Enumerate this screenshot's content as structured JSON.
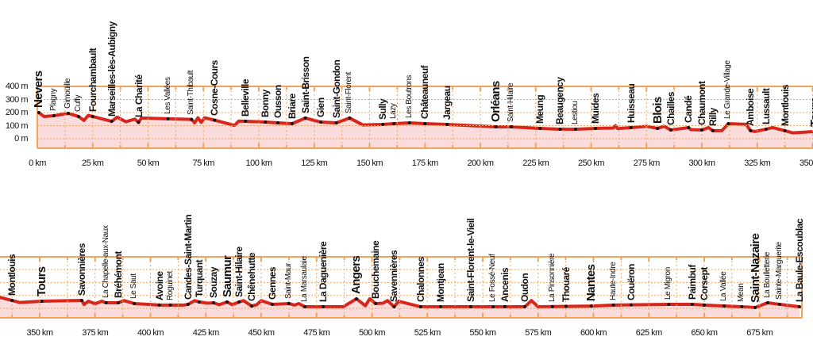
{
  "chart_data": {
    "type": "area",
    "title": "",
    "xlabel": "",
    "ylabel": "",
    "ylim": [
      -75,
      400
    ],
    "y_ticks": [
      "400 m",
      "300 m",
      "200 m",
      "100 m",
      "0 m"
    ],
    "y_tick_values": [
      400,
      300,
      200,
      100,
      0
    ],
    "grid": true,
    "colors": {
      "line": "#d8261c",
      "fill": "#fadcdc",
      "frame": "#f2a35c",
      "dot": "#111111"
    },
    "profile": [
      [
        0,
        195
      ],
      [
        0.7,
        200
      ],
      [
        3,
        170
      ],
      [
        7.5,
        176
      ],
      [
        14,
        194
      ],
      [
        18.6,
        170
      ],
      [
        21,
        140
      ],
      [
        23,
        178
      ],
      [
        25,
        170
      ],
      [
        33.6,
        133
      ],
      [
        36,
        165
      ],
      [
        40,
        130
      ],
      [
        44,
        150
      ],
      [
        45.7,
        125
      ],
      [
        47,
        158
      ],
      [
        59,
        152
      ],
      [
        69.6,
        148
      ],
      [
        71,
        122
      ],
      [
        72.5,
        160
      ],
      [
        74,
        125
      ],
      [
        75.5,
        160
      ],
      [
        80,
        142
      ],
      [
        89,
        102
      ],
      [
        91,
        135
      ],
      [
        94,
        133
      ],
      [
        103,
        127
      ],
      [
        108.6,
        121
      ],
      [
        115,
        115
      ],
      [
        121,
        158
      ],
      [
        128,
        127
      ],
      [
        135,
        121
      ],
      [
        141,
        158
      ],
      [
        147,
        105
      ],
      [
        156,
        109
      ],
      [
        161,
        115
      ],
      [
        168,
        121
      ],
      [
        175,
        115
      ],
      [
        185,
        109
      ],
      [
        207,
        91
      ],
      [
        214,
        91
      ],
      [
        227,
        79
      ],
      [
        236,
        73
      ],
      [
        243,
        73
      ],
      [
        252,
        79
      ],
      [
        260,
        82
      ],
      [
        261,
        100
      ],
      [
        262,
        78
      ],
      [
        268,
        85
      ],
      [
        275,
        95
      ],
      [
        280,
        79
      ],
      [
        283,
        95
      ],
      [
        286,
        67
      ],
      [
        294,
        85
      ],
      [
        295,
        70
      ],
      [
        300,
        67
      ],
      [
        303,
        85
      ],
      [
        305,
        61
      ],
      [
        309,
        61
      ],
      [
        312,
        115
      ],
      [
        320,
        110
      ],
      [
        322,
        61
      ],
      [
        324,
        55
      ],
      [
        329,
        73
      ],
      [
        332,
        85
      ],
      [
        337.5,
        61
      ],
      [
        341,
        45
      ],
      [
        351,
        55
      ],
      [
        369,
        61
      ],
      [
        370,
        30
      ],
      [
        372,
        55
      ],
      [
        375,
        35
      ],
      [
        378,
        55
      ],
      [
        380,
        43
      ],
      [
        385.5,
        43
      ],
      [
        388,
        60
      ],
      [
        392.7,
        37
      ],
      [
        404,
        25
      ],
      [
        409,
        25
      ],
      [
        415,
        25
      ],
      [
        417,
        31
      ],
      [
        420,
        60
      ],
      [
        422,
        49
      ],
      [
        426,
        40
      ],
      [
        428.5,
        43
      ],
      [
        431,
        28
      ],
      [
        434.6,
        49
      ],
      [
        437,
        28
      ],
      [
        440,
        49
      ],
      [
        442,
        60
      ],
      [
        445.7,
        18
      ],
      [
        448,
        28
      ],
      [
        450,
        60
      ],
      [
        455,
        31
      ],
      [
        462.5,
        37
      ],
      [
        465,
        25
      ],
      [
        467,
        37
      ],
      [
        469.7,
        12
      ],
      [
        478,
        12
      ],
      [
        487,
        12
      ],
      [
        493,
        74
      ],
      [
        497,
        20
      ],
      [
        499,
        74
      ],
      [
        501.6,
        37
      ],
      [
        505,
        40
      ],
      [
        507,
        60
      ],
      [
        510,
        12
      ],
      [
        512,
        55
      ],
      [
        522,
        12
      ],
      [
        569,
        12
      ],
      [
        572,
        60
      ],
      [
        575,
        12
      ],
      [
        599,
        18
      ],
      [
        609,
        25
      ],
      [
        634,
        31
      ],
      [
        645,
        31
      ],
      [
        650,
        25
      ],
      [
        667,
        12
      ],
      [
        673,
        6
      ],
      [
        678.6,
        43
      ],
      [
        684,
        31
      ],
      [
        693,
        12
      ]
    ],
    "panels": [
      {
        "xlim": [
          0,
          350
        ],
        "x_ticks": [
          "0 km",
          "25 km",
          "50 km",
          "75 km",
          "100 km",
          "125 km",
          "150 km",
          "175 km",
          "200 km",
          "225 km",
          "250 km",
          "275 km",
          "300 km",
          "325 km",
          "350 km"
        ],
        "x_tick_values": [
          0,
          25,
          50,
          75,
          100,
          125,
          150,
          175,
          200,
          225,
          250,
          275,
          300,
          325,
          350
        ],
        "places": [
          {
            "name": "Nevers",
            "km": 0.7,
            "elev": 200,
            "rank": "major"
          },
          {
            "name": "Plagny",
            "km": 7.5,
            "elev": 176,
            "rank": "minor"
          },
          {
            "name": "Gimouille",
            "km": 14,
            "elev": 194,
            "rank": "minor"
          },
          {
            "name": "Cuffy",
            "km": 18.6,
            "elev": 170,
            "rank": "minor"
          },
          {
            "name": "Fourchambault",
            "km": 25,
            "elev": 170,
            "rank": "mid"
          },
          {
            "name": "Marseilles-lès-Aubigny",
            "km": 33.6,
            "elev": 133,
            "rank": "mid"
          },
          {
            "name": "La Charité",
            "km": 45.7,
            "elev": 125,
            "rank": "mid"
          },
          {
            "name": "Les Vallées",
            "km": 59,
            "elev": 152,
            "rank": "minor"
          },
          {
            "name": "Saint-Thibault",
            "km": 69.6,
            "elev": 148,
            "rank": "minor"
          },
          {
            "name": "Cosne-Cours",
            "km": 80,
            "elev": 142,
            "rank": "mid"
          },
          {
            "name": "Belleville",
            "km": 94,
            "elev": 133,
            "rank": "mid"
          },
          {
            "name": "Bonny",
            "km": 103,
            "elev": 127,
            "rank": "mid"
          },
          {
            "name": "Ousson",
            "km": 108.6,
            "elev": 121,
            "rank": "mid"
          },
          {
            "name": "Briare",
            "km": 115,
            "elev": 115,
            "rank": "mid"
          },
          {
            "name": "Saint-Brisson",
            "km": 121,
            "elev": 158,
            "rank": "mid"
          },
          {
            "name": "Gien",
            "km": 128,
            "elev": 127,
            "rank": "mid"
          },
          {
            "name": "Saint-Gondon",
            "km": 135,
            "elev": 121,
            "rank": "mid"
          },
          {
            "name": "Saint-Florent",
            "km": 141,
            "elev": 158,
            "rank": "minor"
          },
          {
            "name": "Sully",
            "km": 156,
            "elev": 109,
            "rank": "mid"
          },
          {
            "name": "Lazy",
            "km": 161,
            "elev": 115,
            "rank": "minor"
          },
          {
            "name": "Les Boutrons",
            "km": 168,
            "elev": 121,
            "rank": "minor"
          },
          {
            "name": "Châteauneuf",
            "km": 175,
            "elev": 115,
            "rank": "mid"
          },
          {
            "name": "Jargeau",
            "km": 185,
            "elev": 109,
            "rank": "mid"
          },
          {
            "name": "Orléans",
            "km": 207,
            "elev": 91,
            "rank": "major"
          },
          {
            "name": "Saint-Hilaire",
            "km": 214,
            "elev": 91,
            "rank": "minor"
          },
          {
            "name": "Meung",
            "km": 227,
            "elev": 79,
            "rank": "mid"
          },
          {
            "name": "Beaugency",
            "km": 236,
            "elev": 73,
            "rank": "mid"
          },
          {
            "name": "Lestiou",
            "km": 243,
            "elev": 73,
            "rank": "minor"
          },
          {
            "name": "Muides",
            "km": 252,
            "elev": 79,
            "rank": "mid"
          },
          {
            "name": "Huisseau",
            "km": 268,
            "elev": 85,
            "rank": "mid"
          },
          {
            "name": "Blois",
            "km": 280,
            "elev": 79,
            "rank": "major"
          },
          {
            "name": "Chailles",
            "km": 286,
            "elev": 67,
            "rank": "mid"
          },
          {
            "name": "Candé",
            "km": 294,
            "elev": 85,
            "rank": "mid"
          },
          {
            "name": "Chaumont",
            "km": 300,
            "elev": 67,
            "rank": "mid"
          },
          {
            "name": "Rilly",
            "km": 305,
            "elev": 61,
            "rank": "mid"
          },
          {
            "name": "Le Grande-Village",
            "km": 312,
            "elev": 115,
            "rank": "minor"
          },
          {
            "name": "Amboise",
            "km": 322,
            "elev": 61,
            "rank": "mid"
          },
          {
            "name": "Lussault",
            "km": 329,
            "elev": 73,
            "rank": "mid"
          },
          {
            "name": "Montlouis",
            "km": 337.5,
            "elev": 61,
            "rank": "mid"
          },
          {
            "name": "Tours",
            "km": 351,
            "elev": 55,
            "rank": "major"
          }
        ]
      },
      {
        "xlim": [
          332,
          696
        ],
        "x_ticks": [
          "350 km",
          "375 km",
          "400 km",
          "425 km",
          "450 km",
          "475 km",
          "500 km",
          "525 km",
          "550 km",
          "575 km",
          "600 km",
          "625 km",
          "650 km",
          "675 km"
        ],
        "x_tick_values": [
          350,
          375,
          400,
          425,
          450,
          475,
          500,
          525,
          550,
          575,
          600,
          625,
          650,
          675
        ],
        "places": [
          {
            "name": "Montlouis",
            "km": 337.5,
            "elev": 61,
            "rank": "mid"
          },
          {
            "name": "Tours",
            "km": 351,
            "elev": 55,
            "rank": "major"
          },
          {
            "name": "Savonnières",
            "km": 369,
            "elev": 61,
            "rank": "mid"
          },
          {
            "name": "La Chapelle-aux-Naux",
            "km": 380,
            "elev": 43,
            "rank": "minor"
          },
          {
            "name": "Bréhémont",
            "km": 385.5,
            "elev": 43,
            "rank": "mid"
          },
          {
            "name": "Le Saut",
            "km": 392.7,
            "elev": 37,
            "rank": "minor"
          },
          {
            "name": "Avoine",
            "km": 404,
            "elev": 25,
            "rank": "mid"
          },
          {
            "name": "Roguinet",
            "km": 409,
            "elev": 25,
            "rank": "minor"
          },
          {
            "name": "Candes-Saint-Martin",
            "km": 417,
            "elev": 31,
            "rank": "mid"
          },
          {
            "name": "Turquant",
            "km": 422,
            "elev": 49,
            "rank": "mid"
          },
          {
            "name": "Souzay",
            "km": 428.5,
            "elev": 43,
            "rank": "mid"
          },
          {
            "name": "Saumur",
            "km": 434.6,
            "elev": 49,
            "rank": "major"
          },
          {
            "name": "Saint-Hilaire",
            "km": 440,
            "elev": 49,
            "rank": "mid"
          },
          {
            "name": "Chênehutte",
            "km": 445.7,
            "elev": 18,
            "rank": "mid"
          },
          {
            "name": "Gennes",
            "km": 455,
            "elev": 31,
            "rank": "mid"
          },
          {
            "name": "Saint-Maur",
            "km": 462.5,
            "elev": 37,
            "rank": "minor"
          },
          {
            "name": "La Marsaulaie",
            "km": 469.7,
            "elev": 12,
            "rank": "minor"
          },
          {
            "name": "La Daguenière",
            "km": 478,
            "elev": 12,
            "rank": "mid"
          },
          {
            "name": "Angers",
            "km": 493,
            "elev": 74,
            "rank": "major"
          },
          {
            "name": "Bouchemaine",
            "km": 501.6,
            "elev": 37,
            "rank": "mid"
          },
          {
            "name": "Savennières",
            "km": 510,
            "elev": 12,
            "rank": "mid"
          },
          {
            "name": "Chalonnes",
            "km": 522,
            "elev": 12,
            "rank": "mid"
          },
          {
            "name": "Montjean",
            "km": 531,
            "elev": 12,
            "rank": "mid"
          },
          {
            "name": "Saint-Florent-le-Vieil",
            "km": 544.6,
            "elev": 12,
            "rank": "mid"
          },
          {
            "name": "Le Fossé-Neuf",
            "km": 554.7,
            "elev": 12,
            "rank": "minor"
          },
          {
            "name": "Ancenis",
            "km": 560,
            "elev": 12,
            "rank": "mid"
          },
          {
            "name": "Oudon",
            "km": 569,
            "elev": 12,
            "rank": "mid"
          },
          {
            "name": "La Pinsonnière",
            "km": 581.5,
            "elev": 13,
            "rank": "minor"
          },
          {
            "name": "Thouaré",
            "km": 587.6,
            "elev": 15,
            "rank": "mid"
          },
          {
            "name": "Nantes",
            "km": 599,
            "elev": 18,
            "rank": "major"
          },
          {
            "name": "Haute-Indre",
            "km": 609,
            "elev": 25,
            "rank": "minor"
          },
          {
            "name": "Couëron",
            "km": 617,
            "elev": 27,
            "rank": "mid"
          },
          {
            "name": "Le Migron",
            "km": 634,
            "elev": 31,
            "rank": "minor"
          },
          {
            "name": "Paimbuf",
            "km": 644.6,
            "elev": 31,
            "rank": "mid"
          },
          {
            "name": "Corsept",
            "km": 650,
            "elev": 25,
            "rank": "mid"
          },
          {
            "name": "La Vallée",
            "km": 659,
            "elev": 18,
            "rank": "minor"
          },
          {
            "name": "Mean",
            "km": 667,
            "elev": 12,
            "rank": "minor"
          },
          {
            "name": "Saint-Nazaire",
            "km": 673,
            "elev": 6,
            "rank": "major"
          },
          {
            "name": "La Boulletterie",
            "km": 678.6,
            "elev": 43,
            "rank": "minor"
          },
          {
            "name": "Sainte-Marguerite",
            "km": 684,
            "elev": 31,
            "rank": "minor"
          },
          {
            "name": "La Baule-Escoublac",
            "km": 693,
            "elev": 12,
            "rank": "mid"
          }
        ]
      }
    ]
  }
}
